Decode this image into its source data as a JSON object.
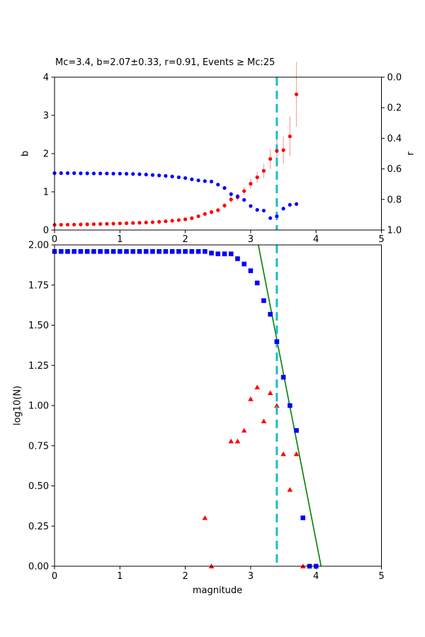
{
  "figure": {
    "background": "#ffffff",
    "spine_color": "#000000",
    "tick_color": "#000000"
  },
  "chart_data": [
    {
      "id": "top",
      "type": "scatter",
      "title": "Mc=3.4, b=2.07±0.33, r=0.91, Events ≥ Mc:25",
      "xlim": [
        0,
        5
      ],
      "ylim_left": [
        0,
        4
      ],
      "ylim_right": [
        0.0,
        1.0
      ],
      "right_axis_inverted": true,
      "ylabel_left": "b",
      "ylabel_right": "r",
      "xtick_labels": [
        "0",
        "1",
        "2",
        "3",
        "4",
        "5"
      ],
      "ytick_labels_left": [
        "0",
        "1",
        "2",
        "3",
        "4"
      ],
      "ytick_labels_right": [
        "0.0",
        "0.2",
        "0.4",
        "0.6",
        "0.8",
        "1.0"
      ],
      "grid": false,
      "vline": {
        "x": 3.4,
        "color": "#17becf",
        "style": "dashed"
      },
      "series": [
        {
          "name": "b-value-vs-cutoff",
          "axis": "left",
          "marker": "circle",
          "color": "#ff0000",
          "error_color": "#f5a9a9",
          "x": [
            0.0,
            0.1,
            0.2,
            0.3,
            0.4,
            0.5,
            0.6,
            0.7,
            0.8,
            0.9,
            1.0,
            1.1,
            1.2,
            1.3,
            1.4,
            1.5,
            1.6,
            1.7,
            1.8,
            1.9,
            2.0,
            2.1,
            2.2,
            2.3,
            2.4,
            2.5,
            2.6,
            2.7,
            2.8,
            2.9,
            3.0,
            3.1,
            3.2,
            3.3,
            3.4,
            3.5,
            3.6,
            3.7
          ],
          "y": [
            0.135,
            0.138,
            0.14,
            0.143,
            0.146,
            0.15,
            0.154,
            0.158,
            0.162,
            0.167,
            0.172,
            0.178,
            0.184,
            0.19,
            0.197,
            0.205,
            0.215,
            0.228,
            0.243,
            0.26,
            0.28,
            0.31,
            0.36,
            0.42,
            0.47,
            0.52,
            0.64,
            0.8,
            0.86,
            1.02,
            1.21,
            1.38,
            1.55,
            1.86,
            2.07,
            2.09,
            2.45,
            3.55
          ],
          "yerr": [
            0.02,
            0.02,
            0.02,
            0.02,
            0.02,
            0.02,
            0.02,
            0.02,
            0.02,
            0.02,
            0.02,
            0.02,
            0.02,
            0.02,
            0.03,
            0.03,
            0.03,
            0.03,
            0.03,
            0.03,
            0.04,
            0.04,
            0.05,
            0.05,
            0.06,
            0.06,
            0.07,
            0.09,
            0.1,
            0.11,
            0.13,
            0.15,
            0.19,
            0.26,
            0.33,
            0.36,
            0.52,
            0.85
          ]
        },
        {
          "name": "goodness-of-fit-r",
          "axis": "right",
          "marker": "circle",
          "color": "#0000ff",
          "x": [
            0.0,
            0.1,
            0.2,
            0.3,
            0.4,
            0.5,
            0.6,
            0.7,
            0.8,
            0.9,
            1.0,
            1.1,
            1.2,
            1.3,
            1.4,
            1.5,
            1.6,
            1.7,
            1.8,
            1.9,
            2.0,
            2.1,
            2.2,
            2.3,
            2.4,
            2.5,
            2.6,
            2.7,
            2.8,
            2.9,
            3.0,
            3.1,
            3.2,
            3.3,
            3.4,
            3.5,
            3.6,
            3.7
          ],
          "y": [
            0.628,
            0.628,
            0.628,
            0.628,
            0.629,
            0.629,
            0.63,
            0.63,
            0.63,
            0.631,
            0.631,
            0.632,
            0.633,
            0.635,
            0.637,
            0.64,
            0.643,
            0.646,
            0.65,
            0.655,
            0.66,
            0.668,
            0.675,
            0.68,
            0.683,
            0.703,
            0.725,
            0.765,
            0.78,
            0.803,
            0.843,
            0.868,
            0.873,
            0.922,
            0.91,
            0.86,
            0.835,
            0.83
          ]
        }
      ]
    },
    {
      "id": "bottom",
      "type": "scatter",
      "xlabel": "magnitude",
      "ylabel": "log10(N)",
      "xlim": [
        0,
        5
      ],
      "ylim": [
        0.0,
        2.0
      ],
      "xtick_labels": [
        "0",
        "1",
        "2",
        "3",
        "4",
        "5"
      ],
      "ytick_labels": [
        "0.00",
        "0.25",
        "0.50",
        "0.75",
        "1.00",
        "1.25",
        "1.50",
        "1.75",
        "2.00"
      ],
      "grid": false,
      "vline": {
        "x": 3.4,
        "color": "#17becf",
        "style": "dashed"
      },
      "series": [
        {
          "name": "cumulative-counts",
          "marker": "square",
          "color": "#0000ff",
          "x": [
            0.0,
            0.1,
            0.2,
            0.3,
            0.4,
            0.5,
            0.6,
            0.7,
            0.8,
            0.9,
            1.0,
            1.1,
            1.2,
            1.3,
            1.4,
            1.5,
            1.6,
            1.7,
            1.8,
            1.9,
            2.0,
            2.1,
            2.2,
            2.3,
            2.4,
            2.5,
            2.6,
            2.7,
            2.8,
            2.9,
            3.0,
            3.1,
            3.2,
            3.3,
            3.4,
            3.5,
            3.6,
            3.7,
            3.8,
            3.9,
            4.0
          ],
          "y": [
            1.959,
            1.959,
            1.959,
            1.959,
            1.959,
            1.959,
            1.959,
            1.959,
            1.959,
            1.959,
            1.959,
            1.959,
            1.959,
            1.959,
            1.959,
            1.959,
            1.959,
            1.959,
            1.959,
            1.959,
            1.959,
            1.959,
            1.959,
            1.959,
            1.949,
            1.944,
            1.944,
            1.944,
            1.914,
            1.881,
            1.839,
            1.763,
            1.653,
            1.568,
            1.398,
            1.176,
            1.0,
            0.845,
            0.301,
            0.0,
            0.0
          ]
        },
        {
          "name": "binned-counts",
          "marker": "triangle",
          "color": "#ff0000",
          "x": [
            2.3,
            2.4,
            2.7,
            2.8,
            2.9,
            3.0,
            3.1,
            3.2,
            3.3,
            3.4,
            3.5,
            3.6,
            3.7,
            3.8
          ],
          "y": [
            0.301,
            0.0,
            0.778,
            0.778,
            0.845,
            1.041,
            1.114,
            0.903,
            1.079,
            1.0,
            0.699,
            0.477,
            0.699,
            0.0
          ]
        },
        {
          "name": "gutenberg-richter-fit",
          "marker": "line",
          "color": "#008000",
          "x": [
            3.117,
            4.077
          ],
          "y": [
            2.0,
            0.0
          ]
        }
      ]
    }
  ]
}
